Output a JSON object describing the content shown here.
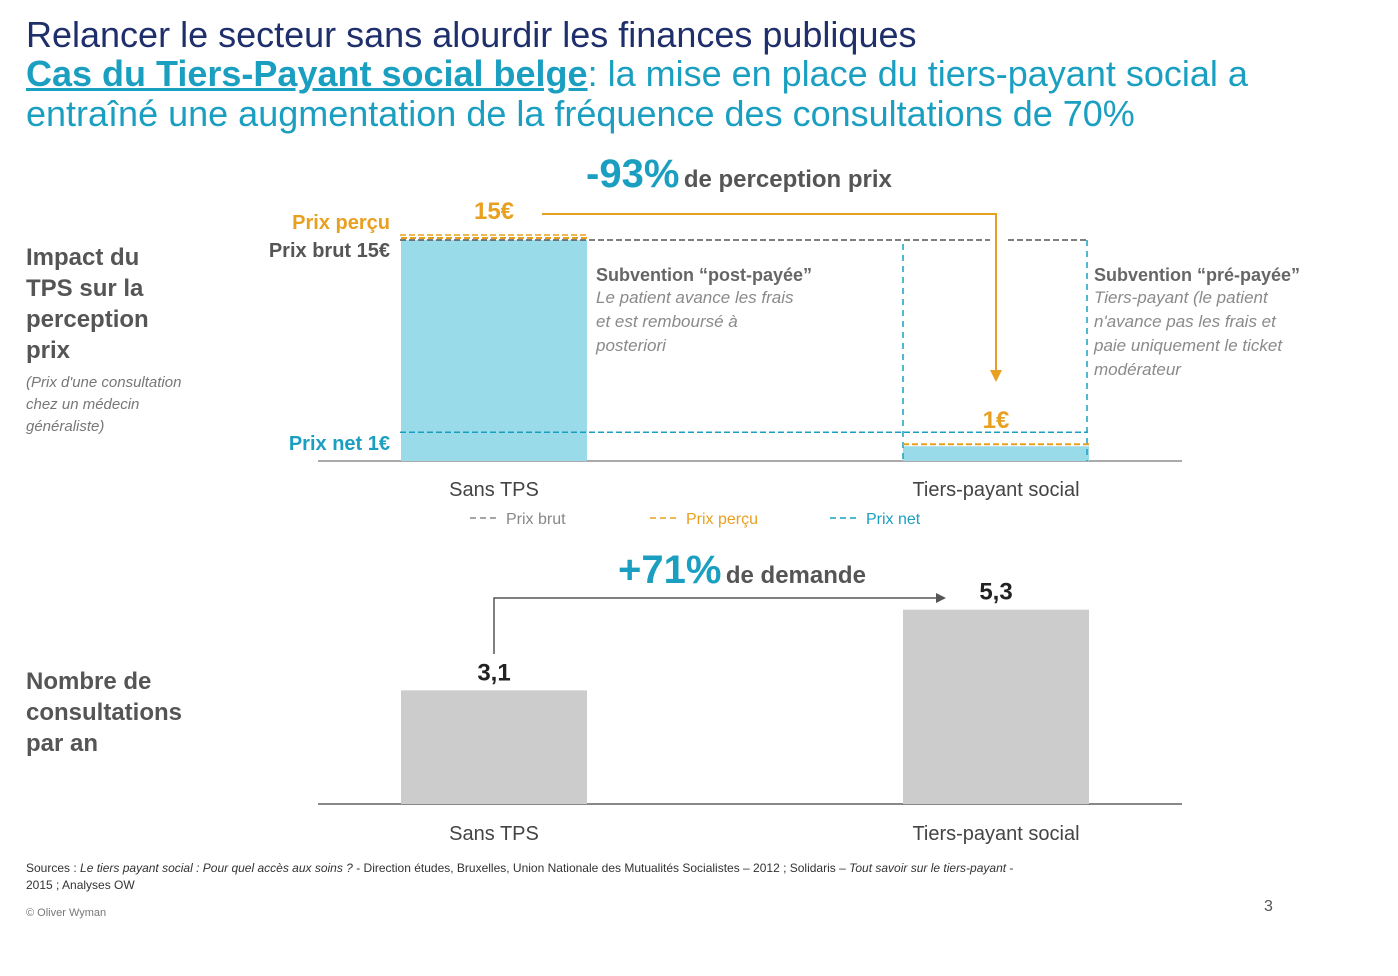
{
  "header": {
    "title": "Relancer le secteur sans alourdir les finances publiques",
    "case_label": "Cas du Tiers-Payant social belge",
    "subtitle_rest": ": la mise en place du tiers-payant social a",
    "subtitle_line2": "entraîné une augmentation de la fréquence des consultations de 70%"
  },
  "price_section": {
    "side_title": [
      "Impact du",
      "TPS sur la",
      "perception",
      "prix"
    ],
    "side_note": [
      "(Prix d'une consultation",
      "chez un médecin",
      "généraliste)"
    ],
    "change_value": "-93%",
    "change_text": "de perception prix",
    "label_percu": "Prix perçu",
    "label_brut": "Prix brut 15€",
    "label_net": "Prix net 1€",
    "value_15": "15€",
    "value_1": "1€",
    "post_subsidy_title": "Subvention “post-payée”",
    "post_subsidy_body": [
      "Le patient avance les frais",
      "et est remboursé à",
      "posteriori"
    ],
    "pre_subsidy_title": "Subvention “pré-payée”",
    "pre_subsidy_body": [
      "Tiers-payant (le patient",
      "n'avance pas les frais et",
      "paie uniquement le ticket",
      "modérateur"
    ],
    "categories": [
      "Sans TPS",
      "Tiers-payant  social"
    ],
    "legend": [
      "Prix brut",
      "Prix perçu",
      "Prix net"
    ]
  },
  "demand_section": {
    "side_title": [
      "Nombre de",
      "consultations",
      "par an"
    ],
    "change_value": "+71%",
    "change_text": "de demande",
    "categories": [
      "Sans TPS",
      "Tiers-payant  social"
    ],
    "value_labels": [
      "3,1",
      "5,3"
    ]
  },
  "footer": {
    "sources_line1_a": "Sources : ",
    "sources_line1_b": "Le tiers payant social : Pour quel accès aux soins ?",
    "sources_line1_c": " - Direction études, Bruxelles, Union Nationale des Mutualités Socialistes – 2012 ; Solidaris – ",
    "sources_line1_d": "Tout savoir sur le tiers-payant",
    "sources_line1_e": " -",
    "sources_line2": "2015 ; Analyses OW",
    "copyright": "© Oliver Wyman",
    "page_number": "3"
  },
  "colors": {
    "cyan_bar": "#9adbea",
    "gray_bar": "#cccccc",
    "accent_blue": "#1b9fc1",
    "accent_orange": "#e8a020",
    "navy": "#1f2f6b"
  },
  "chart_data": [
    {
      "type": "bar",
      "categories": [
        "Sans TPS",
        "Tiers-payant  social"
      ],
      "series": [
        {
          "name": "Prix brut",
          "values": [
            15,
            15
          ]
        },
        {
          "name": "Prix perçu",
          "values": [
            15,
            1
          ]
        },
        {
          "name": "Prix net",
          "values": [
            1,
            1
          ]
        }
      ],
      "ylim": [
        0,
        15
      ],
      "annotation": "-93% de perception prix"
    },
    {
      "type": "bar",
      "categories": [
        "Sans TPS",
        "Tiers-payant  social"
      ],
      "values": [
        3.1,
        5.3
      ],
      "ylim": [
        0,
        6
      ],
      "annotation": "+71% de demande"
    }
  ]
}
